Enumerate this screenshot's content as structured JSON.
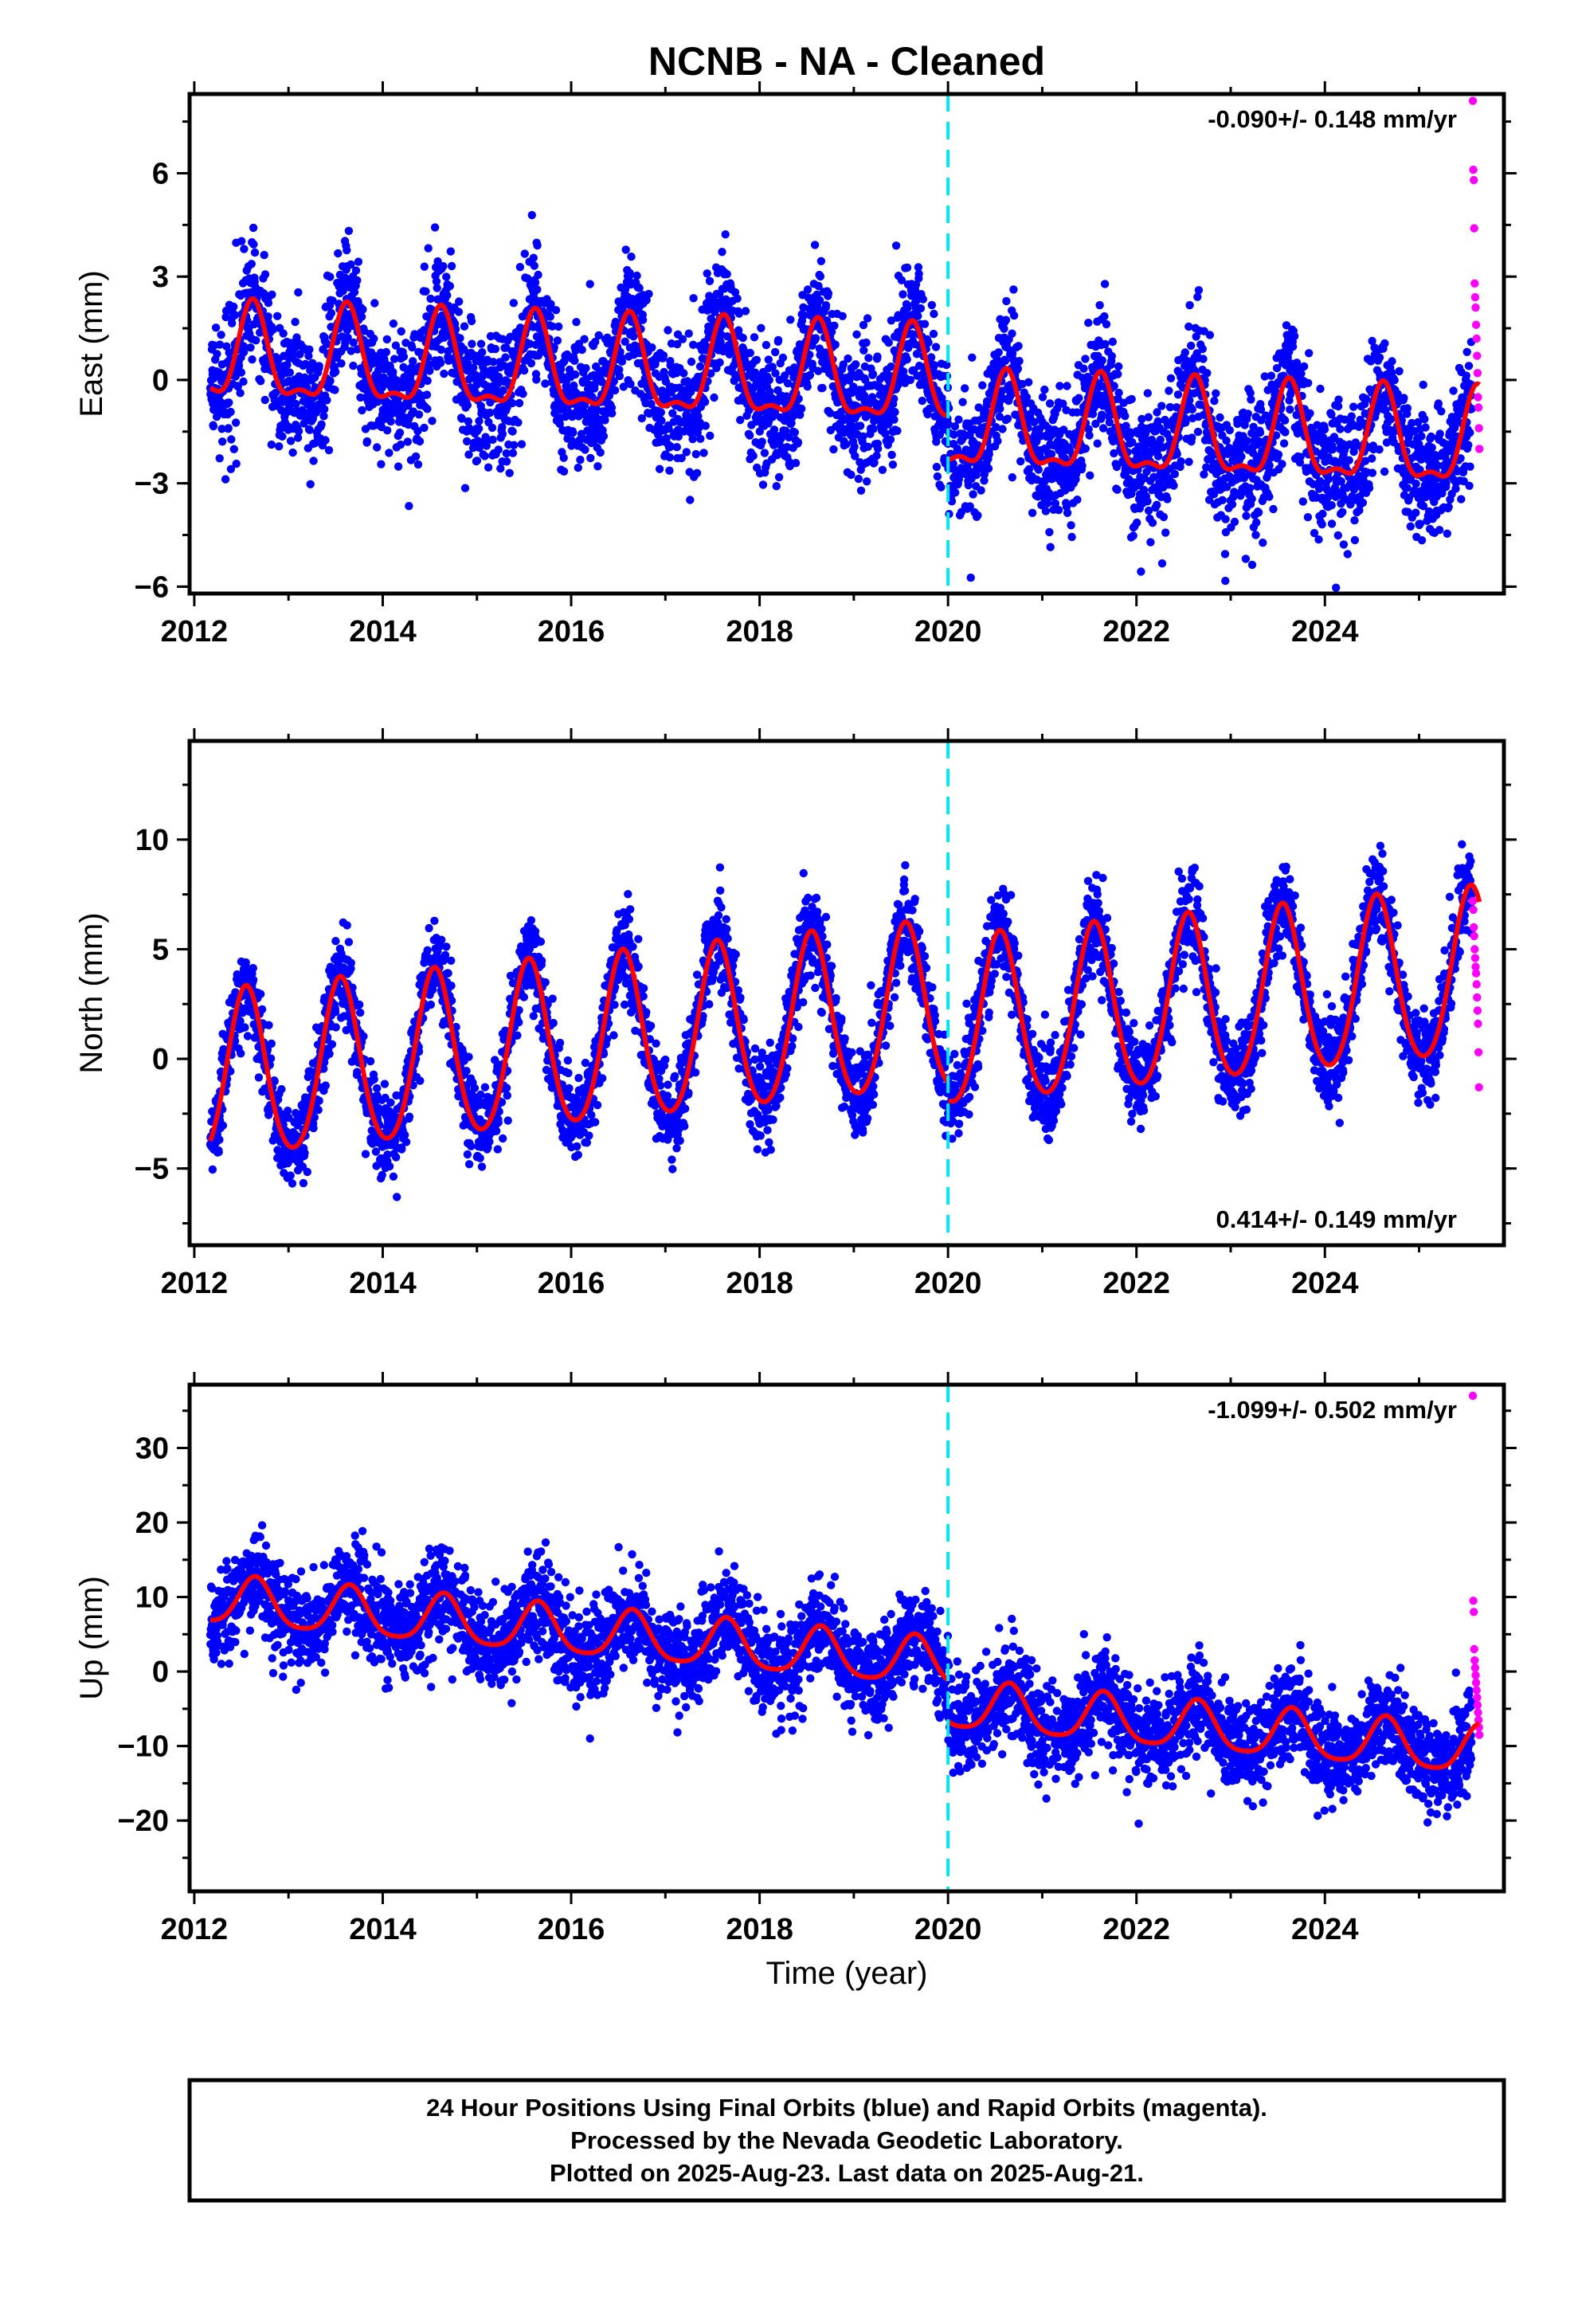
{
  "title": "NCNB  - NA - Cleaned",
  "xlabel": "Time (year)",
  "x_tick_labels": [
    "2012",
    "2014",
    "2016",
    "2018",
    "2020",
    "2022",
    "2024"
  ],
  "colors": {
    "final_orbits": "#0000ff",
    "rapid_orbits": "#ff00ff",
    "model_fit": "#ff0000",
    "event_line": "#00e5ee",
    "frame": "#000000"
  },
  "footer": {
    "line1": "24 Hour Positions Using Final Orbits (blue) and Rapid Orbits (magenta).",
    "line2": "Processed by the Nevada Geodetic Laboratory.",
    "line3": "Plotted on 2025-Aug-23. Last data on 2025-Aug-21."
  },
  "chart_data": [
    {
      "type": "scatter",
      "component": "east",
      "ylabel": "East (mm)",
      "rate_label": "-0.090+/- 0.148 mm/yr",
      "rate_position": "top-right",
      "xlim": [
        2011.95,
        2025.9
      ],
      "ylim": [
        -6.2,
        8.3
      ],
      "yticks": [
        -6,
        -3,
        0,
        3,
        6
      ],
      "ytick_labels": [
        "−6",
        "−3",
        "0",
        "3",
        "6"
      ],
      "xticks": [
        2012,
        2014,
        2016,
        2018,
        2020,
        2022,
        2024
      ],
      "event_line_x": 2020.0,
      "data_start": 2012.17,
      "data_end": 2025.64,
      "rapid_start": 2025.56,
      "series": [
        {
          "name": "Final Orbits",
          "color": "#0000ff",
          "model": {
            "trend_mm_per_yr": -0.09,
            "offset_mm": 0.6,
            "offset_at_2020": -1.3,
            "annual_amp": 1.3,
            "annual_phase_peak": 0.62,
            "semiannual_amp": 0.5,
            "noise_sd": 0.95
          }
        },
        {
          "name": "Rapid Orbits",
          "color": "#ff00ff",
          "values": [
            [
              2025.57,
              8.1
            ],
            [
              2025.575,
              6.1
            ],
            [
              2025.58,
              5.8
            ],
            [
              2025.585,
              4.4
            ],
            [
              2025.59,
              2.8
            ],
            [
              2025.595,
              2.4
            ],
            [
              2025.6,
              2.1
            ],
            [
              2025.605,
              1.6
            ],
            [
              2025.61,
              1.2
            ],
            [
              2025.615,
              0.7
            ],
            [
              2025.62,
              0.2
            ],
            [
              2025.625,
              -0.5
            ],
            [
              2025.63,
              -0.8
            ],
            [
              2025.635,
              -1.4
            ],
            [
              2025.64,
              -2.0
            ]
          ]
        },
        {
          "name": "Model Fit",
          "color": "#ff0000"
        }
      ]
    },
    {
      "type": "scatter",
      "component": "north",
      "ylabel": "North (mm)",
      "rate_label": "0.414+/- 0.149 mm/yr",
      "rate_position": "bottom-right",
      "xlim": [
        2011.95,
        2025.9
      ],
      "ylim": [
        -8.5,
        14.5
      ],
      "yticks": [
        -5,
        0,
        5,
        10
      ],
      "ytick_labels": [
        "−5",
        "0",
        "5",
        "10"
      ],
      "xticks": [
        2012,
        2014,
        2016,
        2018,
        2020,
        2022,
        2024
      ],
      "event_line_x": 2020.0,
      "data_start": 2012.17,
      "data_end": 2025.64,
      "rapid_start": 2025.56,
      "series": [
        {
          "name": "Final Orbits",
          "color": "#0000ff",
          "model": {
            "trend_mm_per_yr": 0.414,
            "offset_mm": -1.0,
            "offset_at_2020": -0.8,
            "annual_amp": 3.8,
            "annual_phase_peak": 0.55,
            "semiannual_amp": 0.4,
            "noise_sd": 1.0
          }
        },
        {
          "name": "Rapid Orbits",
          "color": "#ff00ff",
          "values": [
            [
              2025.57,
              7.2
            ],
            [
              2025.575,
              6.8
            ],
            [
              2025.58,
              6.0
            ],
            [
              2025.585,
              5.6
            ],
            [
              2025.59,
              5.0
            ],
            [
              2025.595,
              4.6
            ],
            [
              2025.6,
              4.2
            ],
            [
              2025.605,
              3.9
            ],
            [
              2025.61,
              3.4
            ],
            [
              2025.615,
              2.8
            ],
            [
              2025.62,
              2.2
            ],
            [
              2025.625,
              1.6
            ],
            [
              2025.63,
              0.3
            ],
            [
              2025.635,
              -1.3
            ]
          ]
        },
        {
          "name": "Model Fit",
          "color": "#ff0000"
        }
      ]
    },
    {
      "type": "scatter",
      "component": "up",
      "ylabel": "Up (mm)",
      "rate_label": "-1.099+/- 0.502 mm/yr",
      "rate_position": "top-right",
      "xlim": [
        2011.95,
        2025.9
      ],
      "ylim": [
        -29.5,
        38.5
      ],
      "yticks": [
        -20,
        -10,
        0,
        10,
        20,
        30
      ],
      "ytick_labels": [
        "−20",
        "−10",
        "0",
        "10",
        "20",
        "30"
      ],
      "xticks": [
        2012,
        2014,
        2016,
        2018,
        2020,
        2022,
        2024
      ],
      "event_line_x": 2020.0,
      "data_start": 2012.17,
      "data_end": 2025.64,
      "rapid_start": 2025.56,
      "series": [
        {
          "name": "Final Orbits",
          "color": "#0000ff",
          "model": {
            "trend_mm_per_yr": -1.099,
            "offset_mm": 9.5,
            "offset_at_2020": -5.5,
            "annual_amp": 3.2,
            "annual_phase_peak": 0.65,
            "semiannual_amp": 0.6,
            "noise_sd": 3.2
          }
        },
        {
          "name": "Rapid Orbits",
          "color": "#ff00ff",
          "values": [
            [
              2025.57,
              37.0
            ],
            [
              2025.575,
              9.5
            ],
            [
              2025.58,
              8.0
            ],
            [
              2025.585,
              3.0
            ],
            [
              2025.59,
              1.5
            ],
            [
              2025.595,
              0.5
            ],
            [
              2025.6,
              -0.5
            ],
            [
              2025.605,
              -1.5
            ],
            [
              2025.61,
              -2.5
            ],
            [
              2025.615,
              -3.5
            ],
            [
              2025.62,
              -4.5
            ],
            [
              2025.625,
              -5.5
            ],
            [
              2025.63,
              -6.5
            ],
            [
              2025.635,
              -7.5
            ],
            [
              2025.64,
              -8.5
            ]
          ]
        },
        {
          "name": "Model Fit",
          "color": "#ff0000"
        }
      ]
    }
  ]
}
